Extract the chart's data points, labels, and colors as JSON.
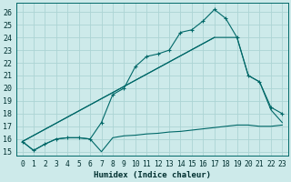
{
  "xlabel": "Humidex (Indice chaleur)",
  "bg_color": "#cdeaea",
  "grid_color": "#acd4d4",
  "line_color": "#006868",
  "xlim": [
    -0.5,
    23.5
  ],
  "ylim": [
    14.7,
    26.7
  ],
  "yticks": [
    15,
    16,
    17,
    18,
    19,
    20,
    21,
    22,
    23,
    24,
    25,
    26
  ],
  "xticks": [
    0,
    1,
    2,
    3,
    4,
    5,
    6,
    7,
    8,
    9,
    10,
    11,
    12,
    13,
    14,
    15,
    16,
    17,
    18,
    19,
    20,
    21,
    22,
    23
  ],
  "line1_x": [
    0,
    1,
    2,
    3,
    4,
    5,
    6,
    7,
    8,
    9,
    10,
    11,
    12,
    13,
    14,
    15,
    16,
    17,
    18,
    19,
    20,
    21,
    22,
    23
  ],
  "line1_y": [
    15.8,
    15.1,
    15.6,
    16.0,
    16.1,
    16.1,
    16.0,
    15.0,
    16.1,
    16.25,
    16.3,
    16.4,
    16.45,
    16.55,
    16.6,
    16.7,
    16.8,
    16.9,
    17.0,
    17.1,
    17.1,
    17.0,
    17.0,
    17.1
  ],
  "line2_x": [
    0,
    1,
    2,
    3,
    4,
    5,
    6,
    7,
    8,
    9,
    10,
    11,
    12,
    13,
    14,
    15,
    16,
    17,
    18,
    19,
    20,
    21,
    22,
    23
  ],
  "line2_y": [
    15.8,
    15.1,
    15.6,
    16.0,
    16.1,
    16.1,
    16.0,
    17.3,
    19.5,
    20.0,
    21.7,
    22.5,
    22.7,
    23.0,
    24.4,
    24.6,
    25.3,
    26.2,
    25.5,
    24.0,
    21.0,
    20.5,
    18.5,
    18.0
  ],
  "line3_x": [
    0,
    17,
    18,
    19,
    20,
    21,
    22,
    23
  ],
  "line3_y": [
    15.8,
    24.0,
    24.0,
    24.0,
    21.0,
    20.5,
    18.3,
    17.3
  ],
  "line4_x": [
    0,
    17
  ],
  "line4_y": [
    15.8,
    24.0
  ]
}
